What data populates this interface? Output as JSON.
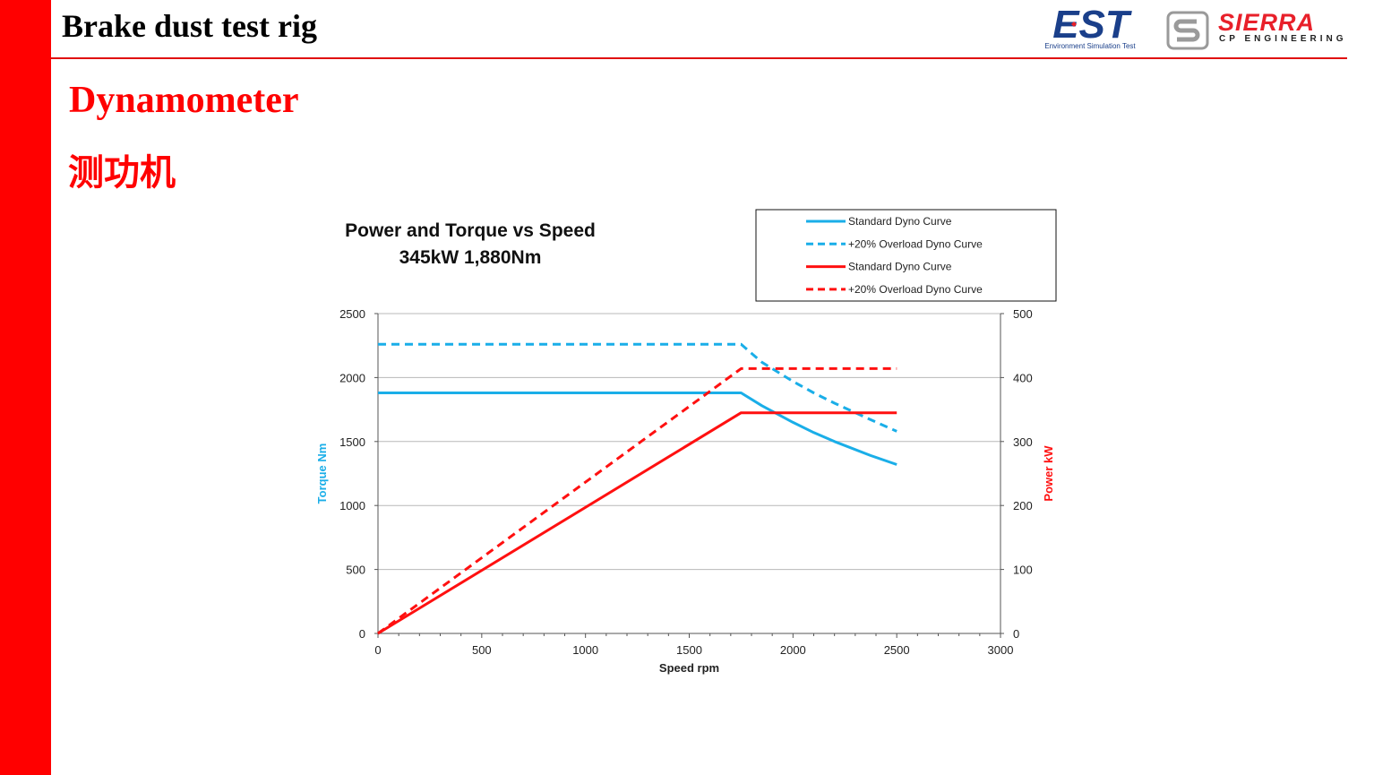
{
  "slide": {
    "title": "Brake dust test rig",
    "section_title": "Dynamometer",
    "section_subtitle": "测功机"
  },
  "logos": {
    "est_text": "EST",
    "est_subtitle": "Environment Simulation Test",
    "sierra_name": "SIERRA",
    "sierra_sub": "CP ENGINEERING"
  },
  "colors": {
    "accent_red": "#ff0000",
    "torque_blue": "#1aaee8",
    "power_red": "#ff1010",
    "est_blue": "#1a3f8a"
  },
  "chart_data": {
    "type": "line",
    "title": "Power and Torque vs Speed",
    "subtitle": "345kW  1,880Nm",
    "xlabel": "Speed rpm",
    "ylabel": "Torque Nm",
    "y2label": "Power kW",
    "xlim": [
      0,
      3000
    ],
    "ylim": [
      0,
      2500
    ],
    "y2lim": [
      0,
      500
    ],
    "xticks": [
      0,
      500,
      1000,
      1500,
      2000,
      2500,
      3000
    ],
    "yticks": [
      0,
      500,
      1000,
      1500,
      2000,
      2500
    ],
    "y2ticks": [
      0,
      100,
      200,
      300,
      400,
      500
    ],
    "grid": true,
    "legend_position": "top-right",
    "series": [
      {
        "name": "Standard Dyno Curve",
        "axis": "left",
        "color": "#1aaee8",
        "dashed": false,
        "x": [
          0,
          1750,
          1850,
          2000,
          2100,
          2200,
          2375,
          2500
        ],
        "y": [
          1880,
          1880,
          1780,
          1650,
          1570,
          1500,
          1390,
          1320
        ]
      },
      {
        "name": "+20% Overload Dyno Curve",
        "axis": "left",
        "color": "#1aaee8",
        "dashed": true,
        "x": [
          0,
          1750,
          1850,
          2000,
          2100,
          2200,
          2375,
          2500
        ],
        "y": [
          2260,
          2260,
          2120,
          1970,
          1880,
          1800,
          1670,
          1580
        ]
      },
      {
        "name": "Standard Dyno Curve",
        "axis": "right",
        "color": "#ff1010",
        "dashed": false,
        "x": [
          0,
          1750,
          2500
        ],
        "y": [
          0,
          345,
          345
        ]
      },
      {
        "name": "+20% Overload Dyno Curve",
        "axis": "right",
        "color": "#ff1010",
        "dashed": true,
        "x": [
          0,
          1750,
          2500
        ],
        "y": [
          0,
          414,
          414
        ]
      }
    ]
  }
}
